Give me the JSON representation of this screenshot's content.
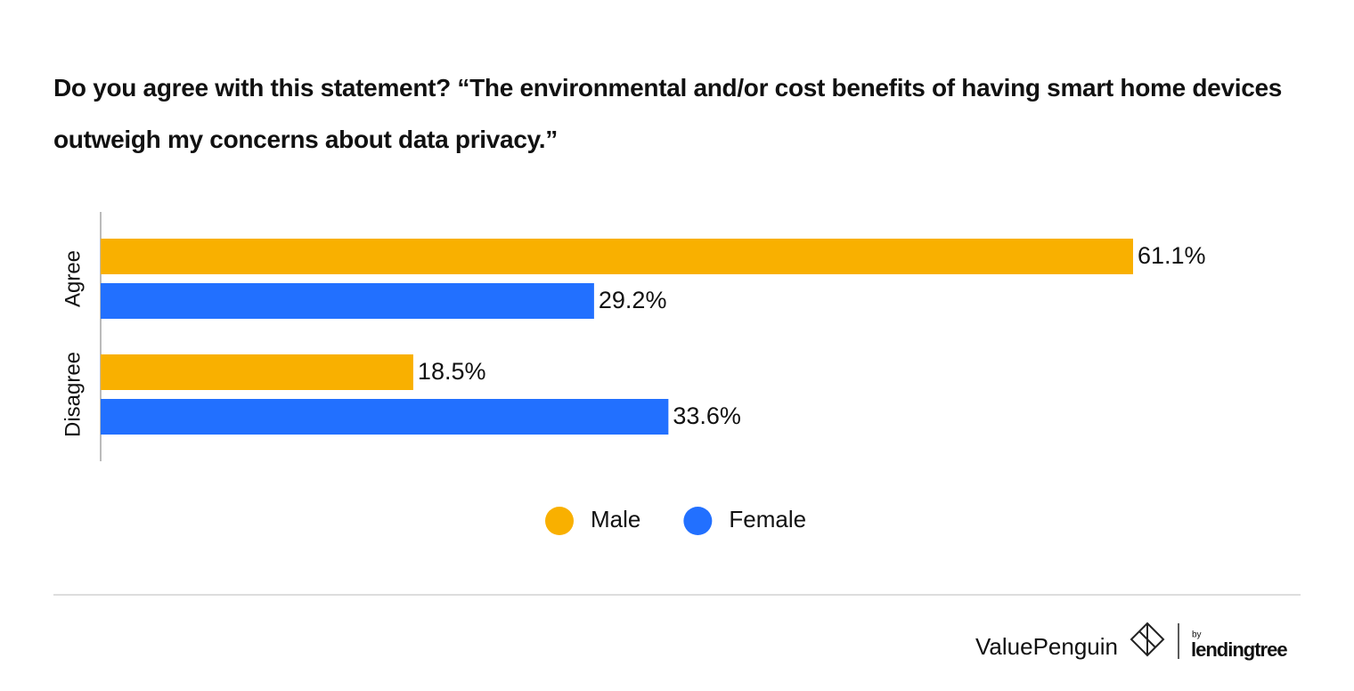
{
  "chart_data": {
    "type": "bar",
    "orientation": "horizontal",
    "title": "Do you agree with this statement? “The environmental and/or cost benefits of having smart home devices outweigh my concerns about data privacy.”",
    "categories": [
      "Agree",
      "Disagree"
    ],
    "series": [
      {
        "name": "Male",
        "color": "#f9b000",
        "values": [
          61.1,
          18.5
        ],
        "value_labels": [
          "61.1%",
          "18.5%"
        ]
      },
      {
        "name": "Female",
        "color": "#2270ff",
        "values": [
          29.2,
          33.6
        ],
        "value_labels": [
          "29.2%",
          "33.6%"
        ]
      }
    ]
  },
  "footer": {
    "brand": "ValuePenguin",
    "by": "by",
    "partner": "lendingtree"
  }
}
